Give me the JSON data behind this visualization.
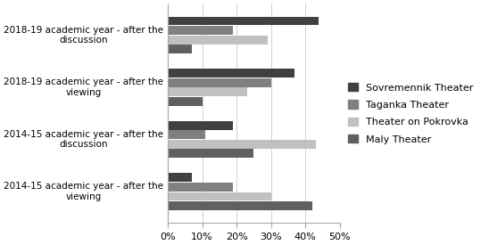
{
  "categories": [
    "2018-19 academic year - after the\ndiscussion",
    "2018-19 academic year - after the\nviewing",
    "2014-15 academic year - after the\ndiscussion",
    "2014-15 academic year - after the\nviewing"
  ],
  "series": {
    "Sovremennik Theater": [
      44,
      37,
      19,
      7
    ],
    "Taganka Theater": [
      19,
      30,
      11,
      19
    ],
    "Theater on Pokrovka": [
      29,
      23,
      43,
      30
    ],
    "Maly Theater": [
      7,
      10,
      25,
      42
    ]
  },
  "colors": {
    "Sovremennik Theater": "#404040",
    "Taganka Theater": "#808080",
    "Theater on Pokrovka": "#c0c0c0",
    "Maly Theater": "#606060"
  },
  "xlim": [
    0,
    50
  ],
  "xtick_labels": [
    "0%",
    "10%",
    "20%",
    "30%",
    "40%",
    "50%"
  ],
  "xtick_values": [
    0,
    10,
    20,
    30,
    40,
    50
  ],
  "background_color": "#ffffff",
  "legend_order": [
    "Sovremennik Theater",
    "Taganka Theater",
    "Theater on Pokrovka",
    "Maly Theater"
  ]
}
